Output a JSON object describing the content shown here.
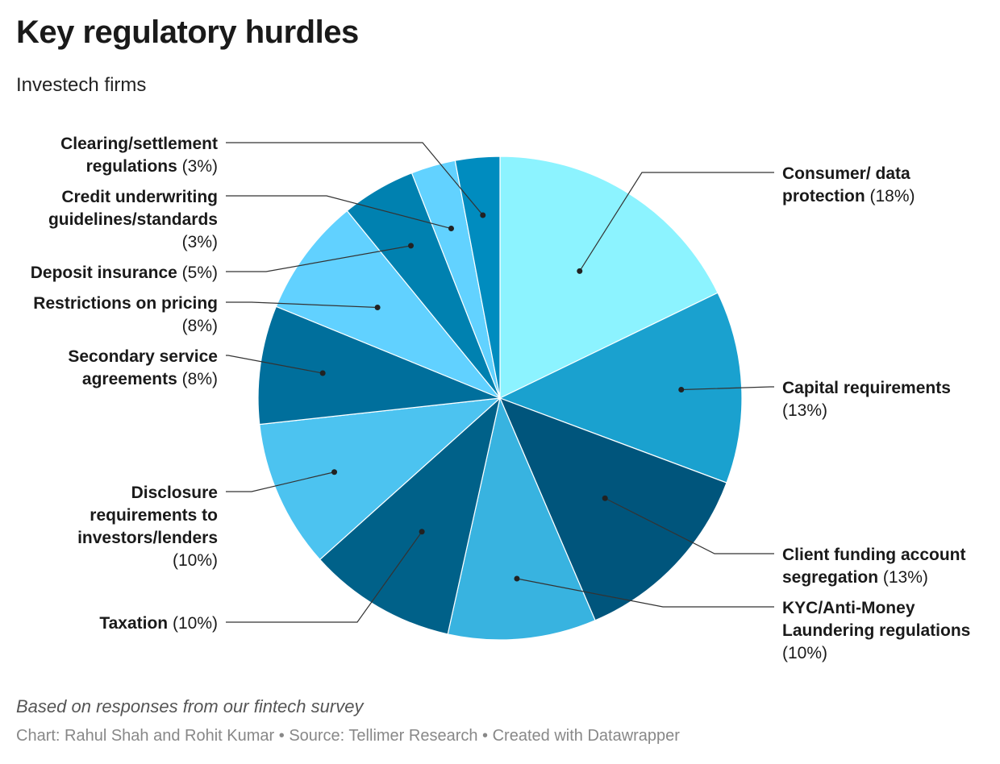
{
  "title": "Key regulatory hurdles",
  "subtitle": "Investech firms",
  "notes": "Based on responses from our fintech survey",
  "byline": {
    "chart_by": "Chart: Rahul Shah and Rohit Kumar",
    "source": "Source: Tellimer Research",
    "tool": "Created with Datawrapper",
    "separator": " • "
  },
  "chart_data": {
    "type": "pie",
    "slices": [
      {
        "label": "Consumer/ data protection",
        "value": 18,
        "display": "(18%)",
        "color": "#8cf3ff"
      },
      {
        "label": "Capital requirements",
        "value": 13,
        "display": "(13%)",
        "color": "#1aa1cf"
      },
      {
        "label": "Client funding account segregation",
        "value": 13,
        "display": "(13%)",
        "color": "#00557c"
      },
      {
        "label": "KYC/Anti-Money Laundering regulations",
        "value": 10,
        "display": "(10%)",
        "color": "#38b3e0"
      },
      {
        "label": "Taxation",
        "value": 10,
        "display": "(10%)",
        "color": "#006189"
      },
      {
        "label": "Disclosure requirements to investors/lenders",
        "value": 10,
        "display": "(10%)",
        "color": "#4cc3f0"
      },
      {
        "label": "Secondary service agreements",
        "value": 8,
        "display": "(8%)",
        "color": "#006f9c"
      },
      {
        "label": "Restrictions on pricing",
        "value": 8,
        "display": "(8%)",
        "color": "#61d1ff"
      },
      {
        "label": "Deposit insurance",
        "value": 5,
        "display": "(5%)",
        "color": "#0081b0"
      },
      {
        "label": "Credit underwriting guidelines/standards",
        "value": 3,
        "display": "(3%)",
        "color": "#62d2ff"
      },
      {
        "label": "Clearing/settlement regulations",
        "value": 3,
        "display": "(3%)",
        "color": "#008cbf"
      }
    ]
  }
}
